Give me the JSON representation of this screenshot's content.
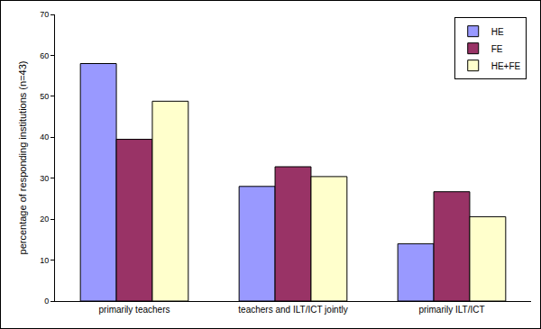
{
  "chart_data": {
    "type": "bar",
    "y_label": "percentage of responding institutions (n=43)",
    "categories": [
      "primarily teachers",
      "teachers and ILT/ICT jointly",
      "primarily ILT/ICT"
    ],
    "series": [
      {
        "name": "HE",
        "color": "#9999ff",
        "values": [
          58,
          28,
          14
        ]
      },
      {
        "name": "FE",
        "color": "#993366",
        "values": [
          39.5,
          32.8,
          26.7
        ]
      },
      {
        "name": "HE+FE",
        "color": "#ffffcc",
        "values": [
          48.8,
          30.4,
          20.6
        ]
      }
    ],
    "ylim": [
      0,
      70
    ],
    "yticks": [
      0,
      10,
      20,
      30,
      40,
      50,
      60,
      70
    ],
    "grid": false,
    "legend": "top right"
  }
}
